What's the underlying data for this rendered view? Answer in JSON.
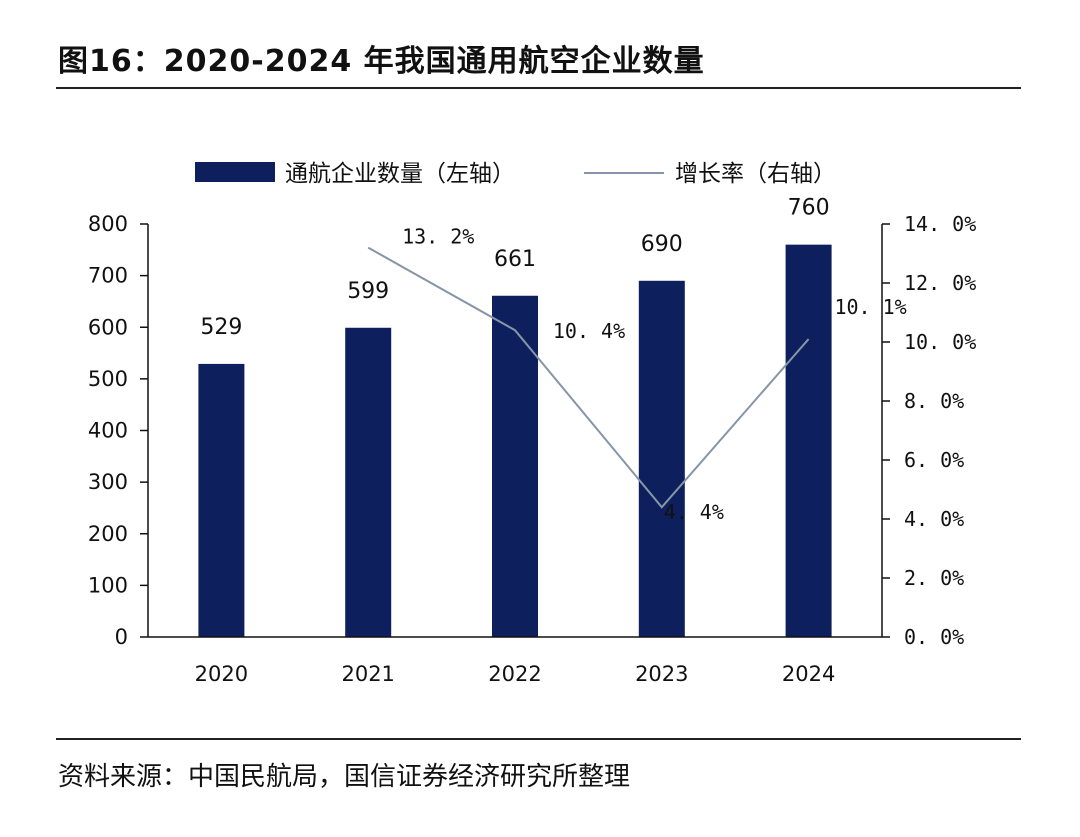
{
  "header": {
    "title": "图16：2020-2024 年我国通用航空企业数量"
  },
  "footer": {
    "source": "资料来源：中国民航局，国信证券经济研究所整理"
  },
  "chart_data": {
    "type": "bar",
    "categories": [
      "2020",
      "2021",
      "2022",
      "2023",
      "2024"
    ],
    "series": [
      {
        "name": "通航企业数量（左轴）",
        "type": "bar",
        "axis": "left",
        "color": "#0d1f5c",
        "values": [
          529,
          599,
          661,
          690,
          760
        ],
        "labels": [
          "529",
          "599",
          "661",
          "690",
          "760"
        ]
      },
      {
        "name": "增长率（右轴）",
        "type": "line",
        "axis": "right",
        "color": "#8696a8",
        "values": [
          null,
          13.2,
          10.4,
          4.4,
          10.1
        ],
        "labels": [
          "",
          "13. 2%",
          "10. 4%",
          "4. 4%",
          "10. 1%"
        ]
      }
    ],
    "y_left": {
      "lim": [
        0,
        800
      ],
      "ticks": [
        0,
        100,
        200,
        300,
        400,
        500,
        600,
        700,
        800
      ],
      "tick_labels": [
        "0",
        "100",
        "200",
        "300",
        "400",
        "500",
        "600",
        "700",
        "800"
      ]
    },
    "y_right": {
      "lim": [
        0,
        14
      ],
      "ticks": [
        0,
        2,
        4,
        6,
        8,
        10,
        12,
        14
      ],
      "tick_labels": [
        "0. 0%",
        "2. 0%",
        "4. 0%",
        "6. 0%",
        "8. 0%",
        "10. 0%",
        "12. 0%",
        "14. 0%"
      ]
    },
    "legend_position": "top",
    "grid": false
  }
}
